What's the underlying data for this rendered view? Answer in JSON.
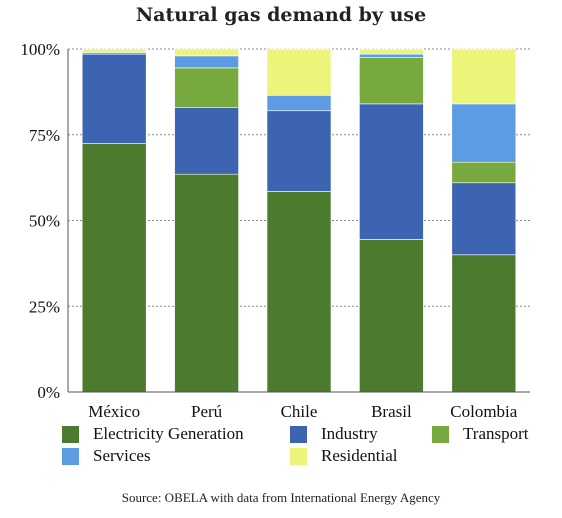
{
  "chart_data": {
    "type": "bar",
    "stacked": true,
    "title": "Natural gas demand by use",
    "categories": [
      "México",
      "Perú",
      "Chile",
      "Brasil",
      "Colombia"
    ],
    "ylim": [
      0,
      100
    ],
    "y_ticks": [
      "0%",
      "25%",
      "50%",
      "75%",
      "100%"
    ],
    "grid": true,
    "legend_position": "bottom",
    "series": [
      {
        "name": "Electricity Generation",
        "color": "#4c7a2e",
        "values": [
          72.5,
          63.5,
          58.5,
          44.5,
          40
        ]
      },
      {
        "name": "Industry",
        "color": "#3c64b0",
        "values": [
          26,
          19.5,
          23.5,
          39.5,
          21
        ]
      },
      {
        "name": "Transport",
        "color": "#77a93f",
        "values": [
          0,
          11.5,
          0,
          13.5,
          6
        ]
      },
      {
        "name": "Services",
        "color": "#5b9ce3",
        "values": [
          0.5,
          3.5,
          4.5,
          1,
          17
        ]
      },
      {
        "name": "Residential",
        "color": "#ecf57a",
        "values": [
          1,
          2,
          13.5,
          1.5,
          16
        ]
      }
    ],
    "source": "Source: OBELA with data from International Energy Agency"
  }
}
